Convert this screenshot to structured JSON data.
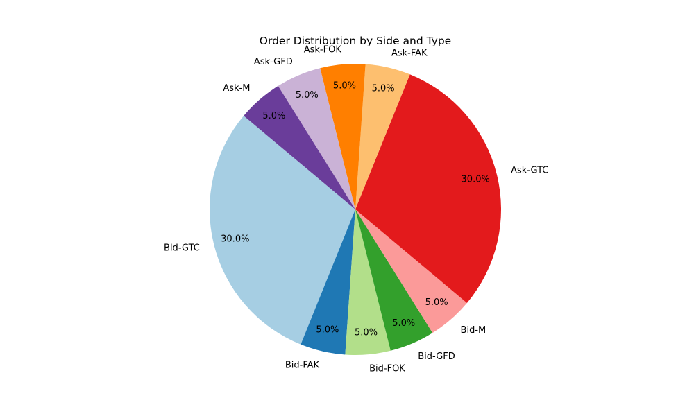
{
  "chart_data": {
    "type": "pie",
    "title": "Order Distribution by Side and Type",
    "labels": [
      "Bid-GTC",
      "Bid-FAK",
      "Bid-FOK",
      "Bid-GFD",
      "Bid-M",
      "Ask-GTC",
      "Ask-FAK",
      "Ask-FOK",
      "Ask-GFD",
      "Ask-M"
    ],
    "values": [
      30,
      5,
      5,
      5,
      5,
      30,
      5,
      5,
      5,
      5
    ],
    "percent_labels": [
      "30.0%",
      "5.0%",
      "5.0%",
      "5.0%",
      "5.0%",
      "30.0%",
      "5.0%",
      "5.0%",
      "5.0%",
      "5.0%"
    ],
    "colors": [
      "#a6cee3",
      "#1f78b4",
      "#b2df8a",
      "#33a02c",
      "#fb9a99",
      "#e31a1c",
      "#fdbf6f",
      "#ff7f00",
      "#cab2d6",
      "#6a3d9a"
    ],
    "start_angle_deg": 140,
    "direction": "counterclockwise",
    "legend": "none"
  }
}
